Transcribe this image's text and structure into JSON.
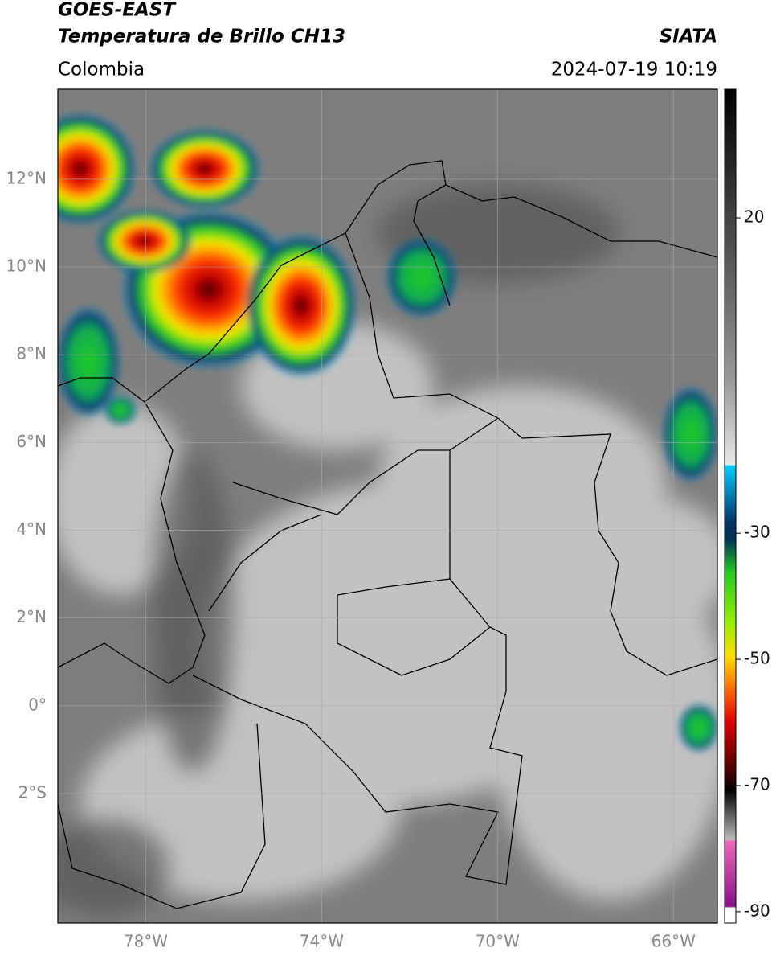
{
  "header": {
    "title": "GOES-EAST",
    "subtitle": "Temperatura de Brillo CH13",
    "source": "SIATA",
    "region": "Colombia",
    "datetime": "2024-07-19 10:19"
  },
  "map": {
    "xlim": [
      -80,
      -65
    ],
    "ylim": [
      -4.95,
      14.05
    ],
    "xticks": [
      {
        "value": -78,
        "label": "78°W"
      },
      {
        "value": -74,
        "label": "74°W"
      },
      {
        "value": -70,
        "label": "70°W"
      },
      {
        "value": -66,
        "label": "66°W"
      }
    ],
    "yticks": [
      {
        "value": 12,
        "label": "12°N"
      },
      {
        "value": 10,
        "label": "10°N"
      },
      {
        "value": 8,
        "label": "8°N"
      },
      {
        "value": 6,
        "label": "6°N"
      },
      {
        "value": 4,
        "label": "4°N"
      },
      {
        "value": 2,
        "label": "2°N"
      },
      {
        "value": 0,
        "label": "0°"
      },
      {
        "value": -2,
        "label": "2°S"
      }
    ],
    "grid": true
  },
  "colorbar": {
    "ylim": [
      -91.8,
      40.4
    ],
    "yticks": [
      20,
      -30,
      -50,
      -70,
      -90
    ]
  }
}
